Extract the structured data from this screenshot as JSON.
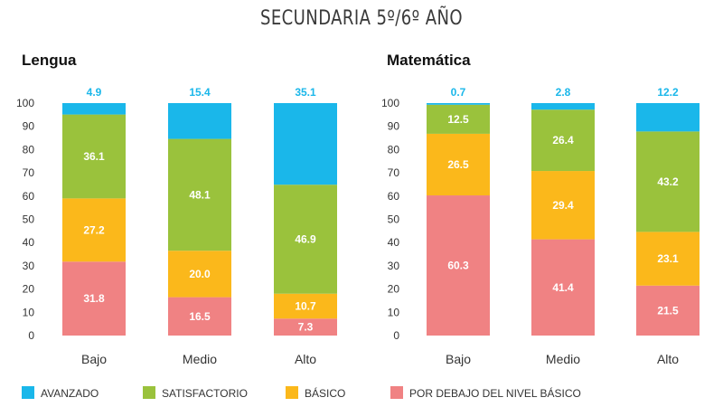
{
  "title": "SECUNDARIA 5º/6º AÑO",
  "colors": {
    "avanzado": "#1ab7ea",
    "satisfactorio": "#9ac23c",
    "basico": "#fbb81b",
    "debajo": "#f08283"
  },
  "legend": [
    {
      "key": "avanzado",
      "label": "AVANZADO"
    },
    {
      "key": "satisfactorio",
      "label": "SATISFACTORIO"
    },
    {
      "key": "basico",
      "label": "BÁSICO"
    },
    {
      "key": "debajo",
      "label": "POR DEBAJO DEL NIVEL BÁSICO"
    }
  ],
  "chart_data": [
    {
      "type": "bar",
      "stacked": true,
      "title": "Lengua",
      "categories": [
        "Bajo",
        "Medio",
        "Alto"
      ],
      "ylim": [
        0,
        100
      ],
      "yticks": [
        0,
        10,
        20,
        30,
        40,
        50,
        60,
        70,
        80,
        90,
        100
      ],
      "series": [
        {
          "name": "POR DEBAJO DEL NIVEL BÁSICO",
          "key": "debajo",
          "values": [
            31.8,
            16.5,
            7.3
          ],
          "labels": [
            "31.8",
            "16.5",
            "7.3"
          ]
        },
        {
          "name": "BÁSICO",
          "key": "basico",
          "values": [
            27.2,
            20.0,
            10.7
          ],
          "labels": [
            "27.2",
            "20.0",
            "10.7"
          ]
        },
        {
          "name": "SATISFACTORIO",
          "key": "satisfactorio",
          "values": [
            36.1,
            48.1,
            46.9
          ],
          "labels": [
            "36.1",
            "48.1",
            "46.9"
          ]
        },
        {
          "name": "AVANZADO",
          "key": "avanzado",
          "values": [
            4.9,
            15.4,
            35.1
          ],
          "labels": [
            "4.9",
            "15.4",
            "35.1"
          ]
        }
      ]
    },
    {
      "type": "bar",
      "stacked": true,
      "title": "Matemática",
      "categories": [
        "Bajo",
        "Medio",
        "Alto"
      ],
      "ylim": [
        0,
        100
      ],
      "yticks": [
        0,
        10,
        20,
        30,
        40,
        50,
        60,
        70,
        80,
        90,
        100
      ],
      "series": [
        {
          "name": "POR DEBAJO DEL NIVEL BÁSICO",
          "key": "debajo",
          "values": [
            60.3,
            41.4,
            21.5
          ],
          "labels": [
            "60.3",
            "41.4",
            "21.5"
          ]
        },
        {
          "name": "BÁSICO",
          "key": "basico",
          "values": [
            26.5,
            29.4,
            23.1
          ],
          "labels": [
            "26.5",
            "29.4",
            "23.1"
          ]
        },
        {
          "name": "SATISFACTORIO",
          "key": "satisfactorio",
          "values": [
            12.5,
            26.4,
            43.2
          ],
          "labels": [
            "12.5",
            "26.4",
            "43.2"
          ]
        },
        {
          "name": "AVANZADO",
          "key": "avanzado",
          "values": [
            0.7,
            2.8,
            12.2
          ],
          "labels": [
            "0.7",
            "2.8",
            "12.2"
          ]
        }
      ]
    }
  ]
}
